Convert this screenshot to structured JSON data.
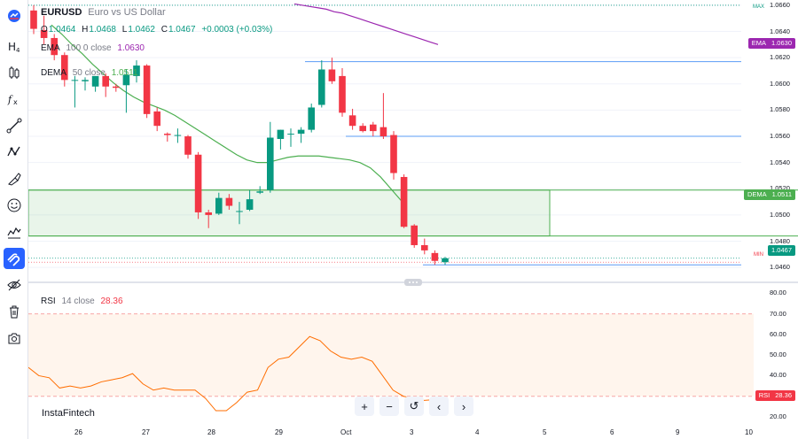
{
  "legend": {
    "symbol": "EURUSD",
    "description": "Euro vs US Dollar",
    "ohlc": {
      "o_label": "O",
      "o": "1.0464",
      "h_label": "H",
      "h": "1.0468",
      "l_label": "L",
      "l": "1.0462",
      "c_label": "C",
      "c": "1.0467",
      "change": "+0.0003 (+0.03%)"
    },
    "ema": {
      "name": "EMA",
      "params": "100 0 close",
      "value": "1.0630"
    },
    "dema": {
      "name": "DEMA",
      "params": "50 close",
      "value": "1.0511"
    },
    "rsi": {
      "name": "RSI",
      "params": "14 close",
      "value": "28.36"
    }
  },
  "price_axis": {
    "ticks": [
      "1.0660",
      "1.0640",
      "1.0620",
      "1.0600",
      "1.0580",
      "1.0560",
      "1.0540",
      "1.0520",
      "1.0500",
      "1.0480",
      "1.0460"
    ],
    "max_label": "MAX",
    "min_label": "MIN",
    "badges": {
      "ema": {
        "name": "EMA",
        "value": "1.0630",
        "color": "#9c27b0"
      },
      "dema": {
        "name": "DEMA",
        "value": "1.0511",
        "color": "#4caf50"
      },
      "last": {
        "value": "1.0467",
        "color": "#089981"
      }
    }
  },
  "rsi_axis": {
    "ticks": [
      "80.00",
      "70.00",
      "60.00",
      "50.00",
      "40.00",
      "30.00",
      "20.00"
    ],
    "badge": {
      "name": "RSI",
      "value": "28.36",
      "color": "#f23645"
    }
  },
  "time_axis": {
    "labels": [
      "26",
      "27",
      "28",
      "29",
      "Oct",
      "3",
      "4",
      "5",
      "6",
      "9",
      "10"
    ]
  },
  "brand": "InstaFintech",
  "nav_controls": {
    "zoom_in": "+",
    "zoom_out": "−",
    "reset": "↺",
    "scroll_left": "‹",
    "scroll_right": "›"
  },
  "colors": {
    "up": "#089981",
    "down": "#f23645",
    "ema": "#9c27b0",
    "dema": "#4caf50",
    "rsi": "#ff6d00",
    "accent": "#2962ff"
  },
  "toolbar": {
    "icons": [
      "chart-menu-icon",
      "text-icon",
      "candles-icon",
      "fx-icon",
      "trend-line-icon",
      "pattern-icon",
      "brush-icon",
      "emoji-icon",
      "measure-icon",
      "magnet-icon",
      "hide-icon",
      "trash-icon",
      "snapshot-icon"
    ]
  },
  "chart_data": {
    "type": "candlestick",
    "symbol": "EURUSD",
    "time_labels": [
      "26",
      "27",
      "28",
      "29",
      "Oct",
      "3"
    ],
    "candles": [
      {
        "o": 1.0656,
        "h": 1.066,
        "l": 1.0638,
        "c": 1.0642
      },
      {
        "o": 1.0641,
        "h": 1.0652,
        "l": 1.063,
        "c": 1.0635
      },
      {
        "o": 1.0635,
        "h": 1.0638,
        "l": 1.0618,
        "c": 1.0622
      },
      {
        "o": 1.0622,
        "h": 1.0624,
        "l": 1.0598,
        "c": 1.0603
      },
      {
        "o": 1.0603,
        "h": 1.0606,
        "l": 1.0582,
        "c": 1.0603
      },
      {
        "o": 1.0602,
        "h": 1.0605,
        "l": 1.0595,
        "c": 1.0603
      },
      {
        "o": 1.0598,
        "h": 1.0606,
        "l": 1.0594,
        "c": 1.0606
      },
      {
        "o": 1.0606,
        "h": 1.0608,
        "l": 1.059,
        "c": 1.0598
      },
      {
        "o": 1.0598,
        "h": 1.06,
        "l": 1.0594,
        "c": 1.0597
      },
      {
        "o": 1.0599,
        "h": 1.0611,
        "l": 1.0578,
        "c": 1.0607
      },
      {
        "o": 1.0606,
        "h": 1.0618,
        "l": 1.0601,
        "c": 1.0614
      },
      {
        "o": 1.0614,
        "h": 1.0615,
        "l": 1.0574,
        "c": 1.0577
      },
      {
        "o": 1.0579,
        "h": 1.0582,
        "l": 1.0564,
        "c": 1.0568
      },
      {
        "o": 1.0562,
        "h": 1.0563,
        "l": 1.0556,
        "c": 1.0561
      },
      {
        "o": 1.0561,
        "h": 1.0566,
        "l": 1.0555,
        "c": 1.0561
      },
      {
        "o": 1.056,
        "h": 1.0561,
        "l": 1.0543,
        "c": 1.0546
      },
      {
        "o": 1.0546,
        "h": 1.0548,
        "l": 1.0497,
        "c": 1.0502
      },
      {
        "o": 1.0502,
        "h": 1.0504,
        "l": 1.049,
        "c": 1.05
      },
      {
        "o": 1.0501,
        "h": 1.0517,
        "l": 1.05,
        "c": 1.0513
      },
      {
        "o": 1.0513,
        "h": 1.0516,
        "l": 1.0504,
        "c": 1.0507
      },
      {
        "o": 1.0503,
        "h": 1.051,
        "l": 1.0493,
        "c": 1.0503
      },
      {
        "o": 1.0504,
        "h": 1.0519,
        "l": 1.0503,
        "c": 1.0512
      },
      {
        "o": 1.0517,
        "h": 1.0522,
        "l": 1.0516,
        "c": 1.0518
      },
      {
        "o": 1.0519,
        "h": 1.0571,
        "l": 1.0517,
        "c": 1.0559
      },
      {
        "o": 1.0558,
        "h": 1.0565,
        "l": 1.055,
        "c": 1.0565
      },
      {
        "o": 1.0562,
        "h": 1.0566,
        "l": 1.0552,
        "c": 1.0562
      },
      {
        "o": 1.0562,
        "h": 1.0567,
        "l": 1.0555,
        "c": 1.0565
      },
      {
        "o": 1.0565,
        "h": 1.0585,
        "l": 1.0563,
        "c": 1.0582
      },
      {
        "o": 1.0584,
        "h": 1.0618,
        "l": 1.0582,
        "c": 1.0611
      },
      {
        "o": 1.0611,
        "h": 1.062,
        "l": 1.06,
        "c": 1.0602
      },
      {
        "o": 1.0606,
        "h": 1.0612,
        "l": 1.0575,
        "c": 1.0578
      },
      {
        "o": 1.0576,
        "h": 1.0581,
        "l": 1.0565,
        "c": 1.0568
      },
      {
        "o": 1.0568,
        "h": 1.057,
        "l": 1.0563,
        "c": 1.0564
      },
      {
        "o": 1.0569,
        "h": 1.0571,
        "l": 1.056,
        "c": 1.0564
      },
      {
        "o": 1.0567,
        "h": 1.0593,
        "l": 1.0558,
        "c": 1.056
      },
      {
        "o": 1.0561,
        "h": 1.0564,
        "l": 1.0527,
        "c": 1.0532
      },
      {
        "o": 1.0529,
        "h": 1.0531,
        "l": 1.049,
        "c": 1.0491
      },
      {
        "o": 1.0492,
        "h": 1.0493,
        "l": 1.0475,
        "c": 1.0477
      },
      {
        "o": 1.0477,
        "h": 1.0482,
        "l": 1.047,
        "c": 1.0473
      },
      {
        "o": 1.0471,
        "h": 1.0473,
        "l": 1.0462,
        "c": 1.0465
      },
      {
        "o": 1.0464,
        "h": 1.0468,
        "l": 1.0462,
        "c": 1.0467
      }
    ],
    "ema_100": [
      1.0661,
      1.066,
      1.0659,
      1.0658,
      1.0657,
      1.0655,
      1.0654,
      1.0652,
      1.065,
      1.0648,
      1.0646,
      1.0644,
      1.0642,
      1.064,
      1.0638,
      1.0636,
      1.0634,
      1.0632,
      1.063
    ],
    "dema_50": [
      1.0645,
      1.0638,
      1.063,
      1.0623,
      1.0615,
      1.0608,
      1.0601,
      1.0595,
      1.059,
      1.0586,
      1.0583,
      1.058,
      1.0576,
      1.0571,
      1.0566,
      1.0561,
      1.0556,
      1.0551,
      1.0546,
      1.0542,
      1.054,
      1.054,
      1.0542,
      1.0544,
      1.0545,
      1.0545,
      1.0545,
      1.0544,
      1.0543,
      1.0542,
      1.054,
      1.0536,
      1.0529,
      1.052,
      1.0511
    ],
    "rsi_14": [
      44,
      40,
      39,
      34,
      35,
      34,
      35,
      37,
      38,
      39,
      41,
      36,
      33,
      34,
      33,
      33,
      33,
      29,
      23,
      23,
      27,
      32,
      33,
      44,
      48,
      49,
      54,
      59,
      57,
      52,
      49,
      48,
      49,
      47,
      40,
      33,
      30,
      29,
      28,
      28.36
    ],
    "horizontal_lines": [
      1.0617,
      1.056,
      1.0483,
      1.0462
    ],
    "zone": {
      "top": 1.0519,
      "bottom": 1.0484
    },
    "rsi_levels": [
      70,
      30
    ],
    "price_range": [
      1.0452,
      1.0664
    ],
    "rsi_range": [
      17,
      84
    ]
  }
}
